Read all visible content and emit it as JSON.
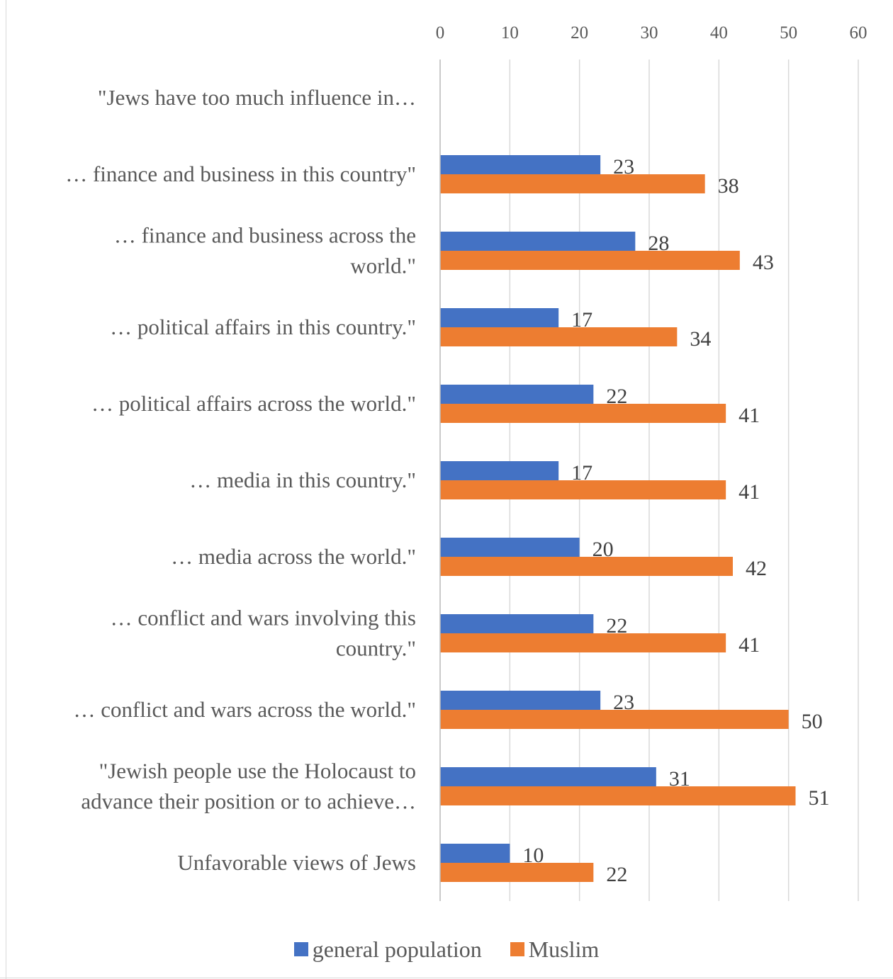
{
  "chart_data": {
    "type": "bar",
    "orientation": "horizontal",
    "title": "",
    "xlabel": "",
    "ylabel": "",
    "xlim": [
      0,
      60
    ],
    "x_ticks": [
      0,
      10,
      20,
      30,
      40,
      50,
      60
    ],
    "x_axis_position": "top",
    "grid": true,
    "legend_position": "bottom",
    "categories": [
      "\"Jews have too much influence in…",
      "… finance and business in this country\"",
      "… finance and business across the world.\"",
      "… political affairs in this country.\"",
      "… political affairs across the world.\"",
      "… media in this country.\"",
      "… media across the world.\"",
      "… conflict and wars involving this country.\"",
      "… conflict and wars across the world.\"",
      "\"Jewish people use the Holocaust to advance their position or to achieve…",
      "Unfavorable views of Jews"
    ],
    "series": [
      {
        "name": "general population",
        "color": "#4472c4",
        "values": [
          null,
          23,
          28,
          17,
          22,
          17,
          20,
          22,
          23,
          31,
          10
        ]
      },
      {
        "name": "Muslim",
        "color": "#ed7d31",
        "values": [
          null,
          38,
          43,
          34,
          41,
          41,
          42,
          41,
          50,
          51,
          22
        ]
      }
    ]
  },
  "category_lines": [
    [
      "\"Jews have too much influence in…"
    ],
    [
      "… finance and business in this country\""
    ],
    [
      "… finance and business across the",
      "world.\""
    ],
    [
      "… political affairs in this country.\""
    ],
    [
      "… political affairs across the world.\""
    ],
    [
      "… media in this country.\""
    ],
    [
      "… media across the world.\""
    ],
    [
      "… conflict and wars involving this",
      "country.\""
    ],
    [
      "… conflict and wars across the world.\""
    ],
    [
      "\"Jewish people use the Holocaust to",
      "advance their position or to achieve…"
    ],
    [
      "Unfavorable views of Jews"
    ]
  ],
  "legend": {
    "general_population": "general population",
    "muslim": "Muslim"
  }
}
